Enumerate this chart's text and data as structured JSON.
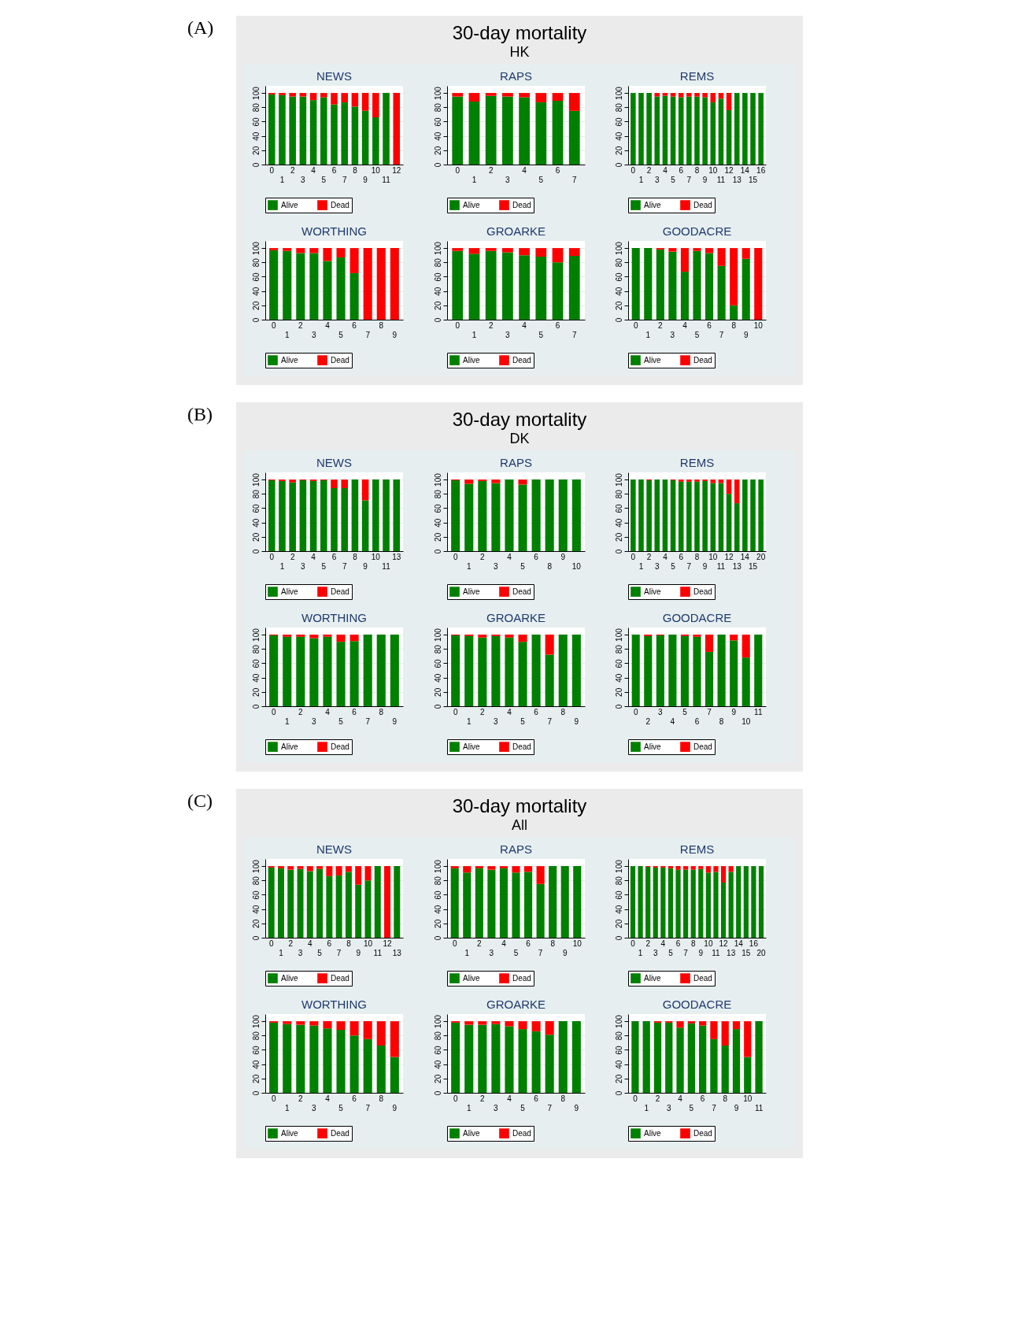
{
  "chart_data": [
    {
      "type": "bar",
      "stacked": true,
      "title": "NEWS",
      "annotations": [
        "(A)",
        "30-day mortality",
        "HK"
      ],
      "categories": [
        "0",
        "1",
        "2",
        "3",
        "4",
        "5",
        "6",
        "7",
        "8",
        "9",
        "10",
        "11",
        "12"
      ],
      "series": [
        {
          "name": "Alive",
          "color": "#008000",
          "values": [
            98,
            97,
            95,
            95,
            90,
            94,
            84,
            87,
            81,
            75,
            66,
            100,
            0
          ]
        },
        {
          "name": "Dead",
          "color": "#ff0000",
          "values": [
            2,
            3,
            5,
            5,
            10,
            6,
            16,
            13,
            19,
            25,
            34,
            0,
            100
          ]
        }
      ],
      "ylim": [
        0,
        110
      ],
      "yticks": [
        0,
        20,
        40,
        60,
        80,
        100
      ],
      "grid": "y",
      "legend": "bottom"
    },
    {
      "type": "bar",
      "stacked": true,
      "title": "RAPS",
      "categories": [
        "0",
        "1",
        "2",
        "3",
        "4",
        "5",
        "6",
        "7"
      ],
      "series": [
        {
          "name": "Alive",
          "color": "#008000",
          "values": [
            95,
            88,
            96,
            95,
            94,
            87,
            89,
            75
          ]
        },
        {
          "name": "Dead",
          "color": "#ff0000",
          "values": [
            5,
            12,
            4,
            5,
            6,
            13,
            11,
            25
          ]
        }
      ],
      "ylim": [
        0,
        110
      ],
      "yticks": [
        0,
        20,
        40,
        60,
        80,
        100
      ],
      "grid": "y",
      "legend": "bottom"
    },
    {
      "type": "bar",
      "stacked": true,
      "title": "REMS",
      "categories": [
        "0",
        "1",
        "2",
        "3",
        "4",
        "5",
        "6",
        "7",
        "8",
        "9",
        "10",
        "11",
        "12",
        "13",
        "14",
        "15",
        "16"
      ],
      "series": [
        {
          "name": "Alive",
          "color": "#008000",
          "values": [
            100,
            100,
            100,
            95,
            96,
            95,
            94,
            95,
            95,
            94,
            87,
            92,
            76,
            100,
            100,
            100,
            100
          ]
        },
        {
          "name": "Dead",
          "color": "#ff0000",
          "values": [
            0,
            0,
            0,
            5,
            4,
            5,
            6,
            5,
            5,
            6,
            13,
            8,
            24,
            0,
            0,
            0,
            0
          ]
        }
      ],
      "ylim": [
        0,
        110
      ],
      "yticks": [
        0,
        20,
        40,
        60,
        80,
        100
      ],
      "grid": "y",
      "legend": "bottom"
    },
    {
      "type": "bar",
      "stacked": true,
      "title": "WORTHING",
      "categories": [
        "0",
        "1",
        "2",
        "3",
        "4",
        "5",
        "6",
        "7",
        "8",
        "9"
      ],
      "series": [
        {
          "name": "Alive",
          "color": "#008000",
          "values": [
            97,
            96,
            93,
            93,
            82,
            87,
            65,
            0,
            0,
            0
          ]
        },
        {
          "name": "Dead",
          "color": "#ff0000",
          "values": [
            3,
            4,
            7,
            7,
            18,
            13,
            35,
            100,
            100,
            100
          ]
        }
      ],
      "ylim": [
        0,
        110
      ],
      "yticks": [
        0,
        20,
        40,
        60,
        80,
        100
      ],
      "grid": "y",
      "legend": "bottom"
    },
    {
      "type": "bar",
      "stacked": true,
      "title": "GROARKE",
      "categories": [
        "0",
        "1",
        "2",
        "3",
        "4",
        "5",
        "6",
        "7"
      ],
      "series": [
        {
          "name": "Alive",
          "color": "#008000",
          "values": [
            96,
            92,
            96,
            94,
            90,
            88,
            80,
            89
          ]
        },
        {
          "name": "Dead",
          "color": "#ff0000",
          "values": [
            4,
            8,
            4,
            6,
            10,
            12,
            20,
            11
          ]
        }
      ],
      "ylim": [
        0,
        110
      ],
      "yticks": [
        0,
        20,
        40,
        60,
        80,
        100
      ],
      "grid": "y",
      "legend": "bottom"
    },
    {
      "type": "bar",
      "stacked": true,
      "title": "GOODACRE",
      "categories": [
        "0",
        "1",
        "2",
        "3",
        "4",
        "5",
        "6",
        "7",
        "8",
        "9",
        "10"
      ],
      "series": [
        {
          "name": "Alive",
          "color": "#008000",
          "values": [
            100,
            100,
            98,
            95,
            67,
            96,
            93,
            75,
            20,
            85,
            0
          ]
        },
        {
          "name": "Dead",
          "color": "#ff0000",
          "values": [
            0,
            0,
            2,
            5,
            33,
            4,
            7,
            25,
            80,
            15,
            100
          ]
        }
      ],
      "ylim": [
        0,
        110
      ],
      "yticks": [
        0,
        20,
        40,
        60,
        80,
        100
      ],
      "grid": "y",
      "legend": "bottom"
    },
    {
      "type": "bar",
      "stacked": true,
      "title": "NEWS",
      "annotations": [
        "(B)",
        "30-day mortality",
        "DK"
      ],
      "categories": [
        "0",
        "1",
        "2",
        "3",
        "4",
        "5",
        "6",
        "7",
        "8",
        "9",
        "10",
        "11",
        "13"
      ],
      "series": [
        {
          "name": "Alive",
          "color": "#008000",
          "values": [
            99,
            98,
            96,
            99,
            98,
            99,
            88,
            88,
            100,
            71,
            100,
            100,
            100
          ]
        },
        {
          "name": "Dead",
          "color": "#ff0000",
          "values": [
            1,
            2,
            4,
            1,
            2,
            1,
            12,
            12,
            0,
            29,
            0,
            0,
            0
          ]
        }
      ],
      "ylim": [
        0,
        110
      ],
      "yticks": [
        0,
        20,
        40,
        60,
        80,
        100
      ],
      "grid": "y",
      "legend": "bottom"
    },
    {
      "type": "bar",
      "stacked": true,
      "title": "RAPS",
      "categories": [
        "0",
        "1",
        "2",
        "3",
        "4",
        "5",
        "6",
        "8",
        "9",
        "10"
      ],
      "series": [
        {
          "name": "Alive",
          "color": "#008000",
          "values": [
            99,
            94,
            98,
            95,
            100,
            93,
            100,
            100,
            100,
            100
          ]
        },
        {
          "name": "Dead",
          "color": "#ff0000",
          "values": [
            1,
            6,
            2,
            5,
            0,
            7,
            0,
            0,
            0,
            0
          ]
        }
      ],
      "ylim": [
        0,
        110
      ],
      "yticks": [
        0,
        20,
        40,
        60,
        80,
        100
      ],
      "grid": "y",
      "legend": "bottom"
    },
    {
      "type": "bar",
      "stacked": true,
      "title": "REMS",
      "categories": [
        "0",
        "1",
        "2",
        "3",
        "4",
        "5",
        "6",
        "7",
        "8",
        "9",
        "10",
        "11",
        "12",
        "13",
        "14",
        "15",
        "20"
      ],
      "series": [
        {
          "name": "Alive",
          "color": "#008000",
          "values": [
            100,
            100,
            99,
            100,
            100,
            99,
            97,
            97,
            97,
            98,
            95,
            95,
            80,
            67,
            100,
            100,
            100
          ]
        },
        {
          "name": "Dead",
          "color": "#ff0000",
          "values": [
            0,
            0,
            1,
            0,
            0,
            1,
            3,
            3,
            3,
            2,
            5,
            5,
            20,
            33,
            0,
            0,
            0
          ]
        }
      ],
      "ylim": [
        0,
        110
      ],
      "yticks": [
        0,
        20,
        40,
        60,
        80,
        100
      ],
      "grid": "y",
      "legend": "bottom"
    },
    {
      "type": "bar",
      "stacked": true,
      "title": "WORTHING",
      "categories": [
        "0",
        "1",
        "2",
        "3",
        "4",
        "5",
        "6",
        "7",
        "8",
        "9"
      ],
      "series": [
        {
          "name": "Alive",
          "color": "#008000",
          "values": [
            99,
            97,
            97,
            95,
            97,
            90,
            91,
            100,
            100,
            100
          ]
        },
        {
          "name": "Dead",
          "color": "#ff0000",
          "values": [
            1,
            3,
            3,
            5,
            3,
            10,
            9,
            0,
            0,
            0
          ]
        }
      ],
      "ylim": [
        0,
        110
      ],
      "yticks": [
        0,
        20,
        40,
        60,
        80,
        100
      ],
      "grid": "y",
      "legend": "bottom"
    },
    {
      "type": "bar",
      "stacked": true,
      "title": "GROARKE",
      "categories": [
        "0",
        "1",
        "2",
        "3",
        "4",
        "5",
        "6",
        "7",
        "8",
        "9"
      ],
      "series": [
        {
          "name": "Alive",
          "color": "#008000",
          "values": [
            99,
            98,
            96,
            98,
            96,
            90,
            100,
            72,
            100,
            100
          ]
        },
        {
          "name": "Dead",
          "color": "#ff0000",
          "values": [
            1,
            2,
            4,
            2,
            4,
            10,
            0,
            28,
            0,
            0
          ]
        }
      ],
      "ylim": [
        0,
        110
      ],
      "yticks": [
        0,
        20,
        40,
        60,
        80,
        100
      ],
      "grid": "y",
      "legend": "bottom"
    },
    {
      "type": "bar",
      "stacked": true,
      "title": "GOODACRE",
      "categories": [
        "0",
        "2",
        "3",
        "4",
        "5",
        "6",
        "7",
        "8",
        "9",
        "10",
        "11"
      ],
      "series": [
        {
          "name": "Alive",
          "color": "#008000",
          "values": [
            100,
            98,
            99,
            100,
            98,
            97,
            76,
            100,
            92,
            68,
            100
          ]
        },
        {
          "name": "Dead",
          "color": "#ff0000",
          "values": [
            0,
            2,
            1,
            0,
            2,
            3,
            24,
            0,
            8,
            32,
            0
          ]
        }
      ],
      "ylim": [
        0,
        110
      ],
      "yticks": [
        0,
        20,
        40,
        60,
        80,
        100
      ],
      "grid": "y",
      "legend": "bottom"
    },
    {
      "type": "bar",
      "stacked": true,
      "title": "NEWS",
      "annotations": [
        "(C)",
        "30-day mortality",
        "All"
      ],
      "categories": [
        "0",
        "1",
        "2",
        "3",
        "4",
        "5",
        "6",
        "7",
        "8",
        "9",
        "10",
        "11",
        "12",
        "13"
      ],
      "series": [
        {
          "name": "Alive",
          "color": "#008000",
          "values": [
            98,
            97,
            95,
            96,
            93,
            96,
            86,
            87,
            92,
            74,
            80,
            100,
            0,
            100
          ]
        },
        {
          "name": "Dead",
          "color": "#ff0000",
          "values": [
            2,
            3,
            5,
            4,
            7,
            4,
            14,
            13,
            8,
            26,
            20,
            0,
            100,
            0
          ]
        }
      ],
      "ylim": [
        0,
        110
      ],
      "yticks": [
        0,
        20,
        40,
        60,
        80,
        100
      ],
      "grid": "y",
      "legend": "bottom"
    },
    {
      "type": "bar",
      "stacked": true,
      "title": "RAPS",
      "categories": [
        "0",
        "1",
        "2",
        "3",
        "4",
        "5",
        "6",
        "7",
        "8",
        "9",
        "10"
      ],
      "series": [
        {
          "name": "Alive",
          "color": "#008000",
          "values": [
            97,
            91,
            97,
            95,
            97,
            91,
            92,
            75,
            100,
            100,
            100
          ]
        },
        {
          "name": "Dead",
          "color": "#ff0000",
          "values": [
            3,
            9,
            3,
            5,
            3,
            9,
            8,
            25,
            0,
            0,
            0
          ]
        }
      ],
      "ylim": [
        0,
        110
      ],
      "yticks": [
        0,
        20,
        40,
        60,
        80,
        100
      ],
      "grid": "y",
      "legend": "bottom"
    },
    {
      "type": "bar",
      "stacked": true,
      "title": "REMS",
      "categories": [
        "0",
        "1",
        "2",
        "3",
        "4",
        "5",
        "6",
        "7",
        "8",
        "9",
        "10",
        "11",
        "12",
        "13",
        "14",
        "15",
        "16",
        "20"
      ],
      "series": [
        {
          "name": "Alive",
          "color": "#008000",
          "values": [
            100,
            100,
            99,
            98,
            98,
            97,
            95,
            95,
            95,
            96,
            91,
            92,
            77,
            92,
            100,
            100,
            100,
            100
          ]
        },
        {
          "name": "Dead",
          "color": "#ff0000",
          "values": [
            0,
            0,
            1,
            2,
            2,
            3,
            5,
            5,
            5,
            4,
            9,
            8,
            23,
            8,
            0,
            0,
            0,
            0
          ]
        }
      ],
      "ylim": [
        0,
        110
      ],
      "yticks": [
        0,
        20,
        40,
        60,
        80,
        100
      ],
      "grid": "y",
      "legend": "bottom"
    },
    {
      "type": "bar",
      "stacked": true,
      "title": "WORTHING",
      "categories": [
        "0",
        "1",
        "2",
        "3",
        "4",
        "5",
        "6",
        "7",
        "8",
        "9"
      ],
      "series": [
        {
          "name": "Alive",
          "color": "#008000",
          "values": [
            98,
            96,
            95,
            94,
            90,
            88,
            80,
            75,
            66,
            50
          ]
        },
        {
          "name": "Dead",
          "color": "#ff0000",
          "values": [
            2,
            4,
            5,
            6,
            10,
            12,
            20,
            25,
            34,
            50
          ]
        }
      ],
      "ylim": [
        0,
        110
      ],
      "yticks": [
        0,
        20,
        40,
        60,
        80,
        100
      ],
      "grid": "y",
      "legend": "bottom"
    },
    {
      "type": "bar",
      "stacked": true,
      "title": "GROARKE",
      "categories": [
        "0",
        "1",
        "2",
        "3",
        "4",
        "5",
        "6",
        "7",
        "8",
        "9"
      ],
      "series": [
        {
          "name": "Alive",
          "color": "#008000",
          "values": [
            98,
            95,
            95,
            96,
            93,
            89,
            86,
            81,
            100,
            100
          ]
        },
        {
          "name": "Dead",
          "color": "#ff0000",
          "values": [
            2,
            5,
            5,
            4,
            7,
            11,
            14,
            19,
            0,
            0
          ]
        }
      ],
      "ylim": [
        0,
        110
      ],
      "yticks": [
        0,
        20,
        40,
        60,
        80,
        100
      ],
      "grid": "y",
      "legend": "bottom"
    },
    {
      "type": "bar",
      "stacked": true,
      "title": "GOODACRE",
      "categories": [
        "0",
        "1",
        "2",
        "3",
        "4",
        "5",
        "6",
        "7",
        "8",
        "9",
        "10",
        "11"
      ],
      "series": [
        {
          "name": "Alive",
          "color": "#008000",
          "values": [
            100,
            100,
            98,
            98,
            91,
            97,
            94,
            75,
            66,
            89,
            50,
            100
          ]
        },
        {
          "name": "Dead",
          "color": "#ff0000",
          "values": [
            0,
            0,
            2,
            2,
            9,
            3,
            6,
            25,
            34,
            11,
            50,
            0
          ]
        }
      ],
      "ylim": [
        0,
        110
      ],
      "yticks": [
        0,
        20,
        40,
        60,
        80,
        100
      ],
      "grid": "y",
      "legend": "bottom"
    }
  ]
}
